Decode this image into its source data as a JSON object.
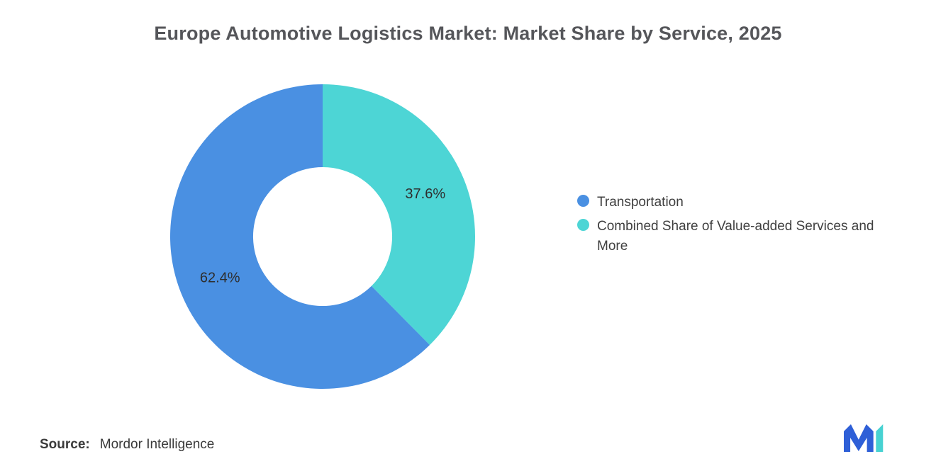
{
  "title": "Europe Automotive Logistics Market: Market Share by Service, 2025",
  "chart_data": {
    "type": "doughnut",
    "title": "Europe Automotive Logistics Market: Market Share by Service, 2025",
    "slices": [
      {
        "label": "Transportation",
        "value": 62.4,
        "color": "#4A90E2"
      },
      {
        "label": "Combined Share of Value-added Services and More",
        "value": 37.6,
        "color": "#4DD5D5"
      }
    ],
    "rotation_deg": 135.36,
    "inner_radius_ratio": 0.456,
    "label_suffix": "%",
    "legend_position": "right",
    "data_labels_inside": true
  },
  "legend": {
    "items": [
      {
        "label": "Transportation",
        "color": "#4A90E2"
      },
      {
        "label": "Combined Share of Value-added Services and More",
        "color": "#4DD5D5"
      }
    ]
  },
  "source": {
    "label": "Source:",
    "text": "Mordor Intelligence"
  },
  "logo": {
    "name": "mordor-intelligence-logo",
    "blue": "#2E5FD7",
    "teal": "#47D2D2"
  }
}
